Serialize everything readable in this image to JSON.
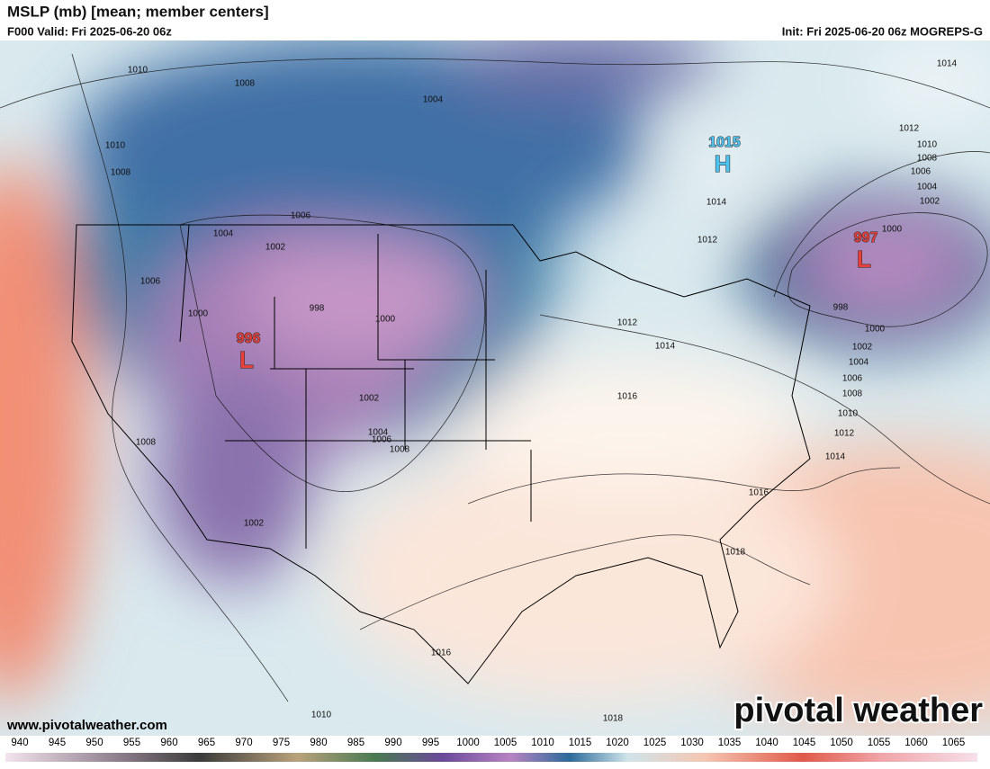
{
  "header": {
    "title": "MSLP (mb) [mean; member centers]",
    "valid": "F000 Valid: Fri 2025-06-20 06z",
    "init": "Init: Fri 2025-06-20 06z MOGREPS-G"
  },
  "map": {
    "contour_labels": [
      1010,
      1008,
      1004,
      1010,
      1008,
      1006,
      1004,
      1002,
      1006,
      1000,
      998,
      1000,
      1012,
      1014,
      1016,
      1002,
      1004,
      1006,
      1008,
      1008,
      1002,
      1016,
      1018,
      1014,
      1012,
      1010,
      1008,
      1006,
      1004,
      1002,
      1000,
      998,
      1000,
      1002,
      1004,
      1006,
      1008,
      1010,
      1012,
      1014,
      1014,
      1012,
      1016,
      1010,
      1018
    ],
    "centers": [
      {
        "value": "996",
        "symbol": "L"
      },
      {
        "value": "997",
        "symbol": "L"
      },
      {
        "value": "1015",
        "symbol": "H"
      }
    ]
  },
  "colorbar": {
    "ticks": [
      940,
      945,
      950,
      955,
      960,
      965,
      970,
      975,
      980,
      985,
      990,
      995,
      1000,
      1005,
      1010,
      1015,
      1020,
      1025,
      1030,
      1035,
      1040,
      1045,
      1050,
      1055,
      1060,
      1065
    ]
  },
  "footer": {
    "url": "www.pivotalweather.com",
    "brand": "pivotal weather"
  }
}
